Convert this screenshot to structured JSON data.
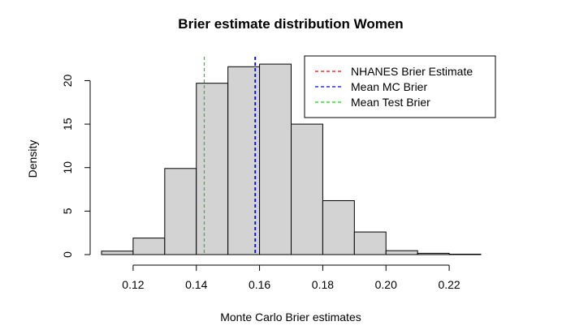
{
  "chart_data": {
    "type": "bar",
    "title": "Brier estimate distribution Women",
    "xlabel": "Monte Carlo Brier estimates",
    "ylabel": "Density",
    "xlim": [
      0.11,
      0.23
    ],
    "ylim": [
      0,
      22
    ],
    "xticks": [
      0.12,
      0.14,
      0.16,
      0.18,
      0.2,
      0.22
    ],
    "xtick_labels": [
      "0.12",
      "0.14",
      "0.16",
      "0.18",
      "0.20",
      "0.22"
    ],
    "yticks": [
      0,
      5,
      10,
      15,
      20
    ],
    "ytick_labels": [
      "0",
      "5",
      "10",
      "15",
      "20"
    ],
    "bar_color": "#d3d3d3",
    "bins": [
      {
        "x0": 0.11,
        "x1": 0.12,
        "density": 0.4
      },
      {
        "x0": 0.12,
        "x1": 0.13,
        "density": 1.9
      },
      {
        "x0": 0.13,
        "x1": 0.14,
        "density": 9.9
      },
      {
        "x0": 0.14,
        "x1": 0.15,
        "density": 19.7
      },
      {
        "x0": 0.15,
        "x1": 0.16,
        "density": 21.6
      },
      {
        "x0": 0.16,
        "x1": 0.17,
        "density": 21.9
      },
      {
        "x0": 0.17,
        "x1": 0.18,
        "density": 15.0
      },
      {
        "x0": 0.18,
        "x1": 0.19,
        "density": 6.2
      },
      {
        "x0": 0.19,
        "x1": 0.2,
        "density": 2.6
      },
      {
        "x0": 0.2,
        "x1": 0.21,
        "density": 0.45
      },
      {
        "x0": 0.21,
        "x1": 0.22,
        "density": 0.15
      },
      {
        "x0": 0.22,
        "x1": 0.23,
        "density": 0.05
      }
    ],
    "vlines": [
      {
        "name": "NHANES Brier Estimate",
        "x": 0.1585,
        "color": "#ff0000"
      },
      {
        "name": "Mean MC Brier",
        "x": 0.1587,
        "color": "#0000ff"
      },
      {
        "name": "Mean Test Brier",
        "x": 0.1425,
        "color": "#00dd00"
      }
    ],
    "legend_position": "top-right",
    "legend": [
      {
        "label": "NHANES Brier Estimate",
        "color": "#ff0000"
      },
      {
        "label": "Mean MC Brier",
        "color": "#0000ff"
      },
      {
        "label": "Mean Test Brier",
        "color": "#00dd00"
      }
    ]
  }
}
